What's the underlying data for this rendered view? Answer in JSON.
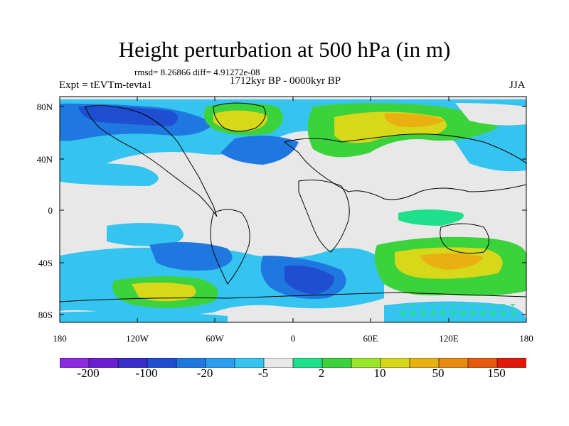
{
  "title": "Height perturbation at 500 hPa (in m)",
  "stats_line": "rmsd= 8.26866 diff= 4.91272e-08",
  "experiment_label": "Expt = tEVTm-tevta1",
  "period_label": "1712kyr BP - 0000kyr BP",
  "season_label": "JJA",
  "lat_ticks": [
    "80N",
    "40N",
    "0",
    "40S",
    "80S"
  ],
  "lon_ticks": [
    "180",
    "120W",
    "60W",
    "0",
    "60E",
    "120E",
    "180"
  ],
  "colorbar": {
    "colors": [
      "#8a2be2",
      "#6a1fd0",
      "#3a2cc8",
      "#1f4fd0",
      "#1f78e0",
      "#2a9ff0",
      "#35c4f0",
      "#e8e8e8",
      "#1fe08a",
      "#3cd23c",
      "#9ae62a",
      "#d8d81a",
      "#e8b010",
      "#e88a10",
      "#e85a10",
      "#e01a0a"
    ],
    "labels": [
      "-200",
      "-100",
      "-20",
      "-5",
      "2",
      "10",
      "50",
      "150"
    ]
  },
  "map_fields": {
    "neutral_color": "#e8e8e8"
  }
}
